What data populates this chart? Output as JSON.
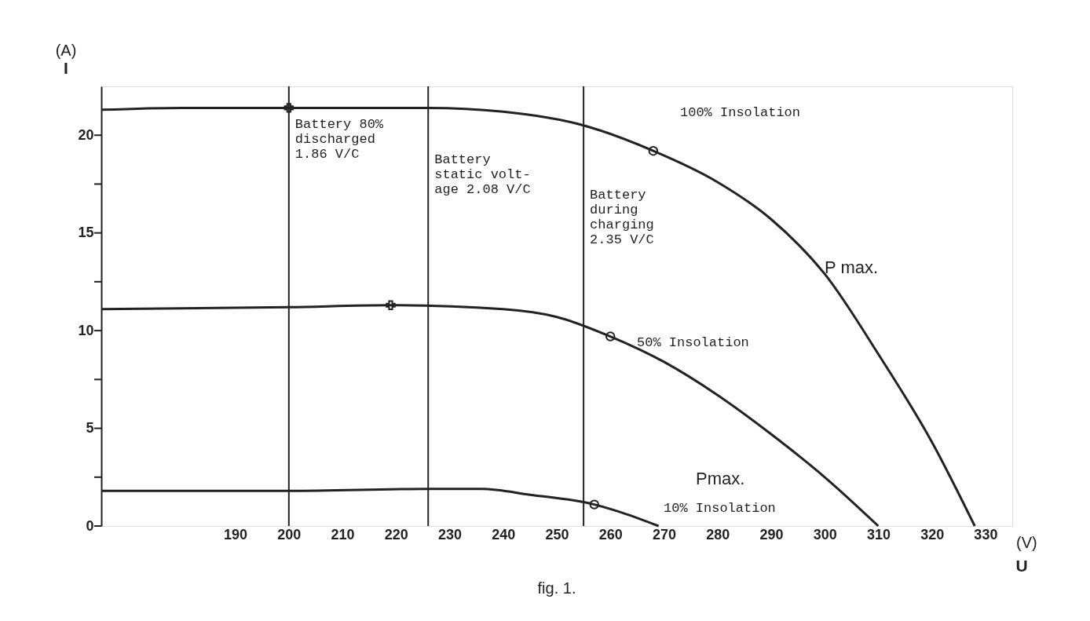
{
  "chart_data": {
    "type": "line",
    "title": "fig. 1.",
    "xlabel": "U",
    "ylabel": "I",
    "xlim": [
      165,
      335
    ],
    "xticks": [
      190,
      200,
      210,
      220,
      230,
      240,
      250,
      260,
      270,
      280,
      290,
      300,
      310,
      320,
      330
    ],
    "ylim": [
      0,
      22.5
    ],
    "yticks": [
      0,
      {
        "value": 2.5,
        "label": null
      },
      5,
      {
        "value": 7.5,
        "label": null
      },
      10,
      {
        "value": 12.5,
        "label": null
      },
      15,
      {
        "value": 17.5,
        "label": null
      },
      20
    ],
    "grid": false,
    "line_style": "solid",
    "series": [
      {
        "color": "#222222",
        "x": [
          165,
          180,
          200,
          226,
          240,
          255,
          268,
          280,
          290,
          300,
          310,
          320,
          328
        ],
        "values": [
          21.3,
          21.4,
          21.4,
          21.4,
          21.2,
          20.5,
          19.2,
          17.6,
          15.7,
          12.9,
          8.8,
          4.3,
          0
        ]
      },
      {
        "color": "#222222",
        "x": [
          165,
          200,
          219,
          240,
          250,
          260,
          270,
          280,
          290,
          300,
          310
        ],
        "values": [
          11.1,
          11.2,
          11.3,
          11.1,
          10.7,
          9.7,
          8.4,
          6.7,
          4.7,
          2.5,
          0
        ]
      },
      {
        "color": "#222222",
        "x": [
          165,
          200,
          226,
          236,
          245,
          257,
          262,
          269
        ],
        "values": [
          1.8,
          1.8,
          1.9,
          1.9,
          1.6,
          1.1,
          0.7,
          0
        ]
      },
      {
        "type": "scatter",
        "marker": "circle",
        "color": "#222222",
        "x": [
          268,
          260,
          257
        ],
        "values": [
          19.2,
          9.7,
          1.1
        ]
      },
      {
        "type": "scatter",
        "marker": "cross",
        "color": "#222222",
        "x": [
          200,
          219
        ],
        "values": [
          21.4,
          11.3
        ]
      }
    ],
    "ref_lines": [
      {
        "axis": "x",
        "value": 200,
        "label": "Battery 80%\ndischarged\n1.86 V/C",
        "color": "#222222"
      },
      {
        "axis": "x",
        "value": 226,
        "label": "Battery\nstatic volt-\nage 2.08 V/C",
        "color": "#222222"
      },
      {
        "axis": "x",
        "value": 255,
        "label": "Battery\nduring\ncharging\n2.35 V/C",
        "color": "#222222"
      }
    ],
    "annotations": [
      "(A)",
      "(V)",
      "100% Insolation",
      "50% Insolation",
      "10% Insolation",
      "P max.",
      "Pmax."
    ]
  }
}
